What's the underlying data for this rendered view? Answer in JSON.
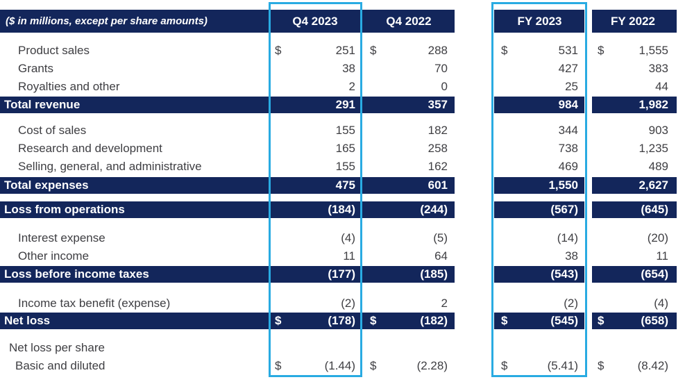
{
  "colors": {
    "navy": "#13265B",
    "highlight": "#29ABE2",
    "ink": "#3E3E42",
    "band_text": "#FFFFFF"
  },
  "table": {
    "units_note": "($ in millions, except per share amounts)",
    "columns": [
      "Q4 2023",
      "Q4 2022",
      "FY 2023",
      "FY 2022"
    ],
    "highlighted_columns": [
      "Q4 2023",
      "FY 2023"
    ],
    "rows": [
      {
        "label": "Product sales",
        "style": "item",
        "d": "$",
        "values": [
          "251",
          "288",
          "531",
          "1,555"
        ]
      },
      {
        "label": "Grants",
        "style": "item",
        "values": [
          "38",
          "70",
          "427",
          "383"
        ]
      },
      {
        "label": "Royalties and other",
        "style": "item",
        "values": [
          "2",
          "0",
          "25",
          "44"
        ]
      },
      {
        "label": "Total revenue",
        "style": "total-band",
        "values": [
          "291",
          "357",
          "984",
          "1,982"
        ]
      },
      {
        "label": "Cost of sales",
        "style": "item",
        "values": [
          "155",
          "182",
          "344",
          "903"
        ]
      },
      {
        "label": "Research and development",
        "style": "item",
        "values": [
          "165",
          "258",
          "738",
          "1,235"
        ]
      },
      {
        "label": "Selling, general, and administrative",
        "style": "item",
        "values": [
          "155",
          "162",
          "469",
          "489"
        ]
      },
      {
        "label": "Total expenses",
        "style": "total-band",
        "values": [
          "475",
          "601",
          "1,550",
          "2,627"
        ]
      },
      {
        "label": "Loss from operations",
        "style": "total-band",
        "values": [
          "(184)",
          "(244)",
          "(567)",
          "(645)"
        ]
      },
      {
        "label": "Interest expense",
        "style": "item",
        "values": [
          "(4)",
          "(5)",
          "(14)",
          "(20)"
        ]
      },
      {
        "label": "Other income",
        "style": "item",
        "values": [
          "11",
          "64",
          "38",
          "11"
        ]
      },
      {
        "label": "Loss before income taxes",
        "style": "total-band",
        "values": [
          "(177)",
          "(185)",
          "(543)",
          "(654)"
        ]
      },
      {
        "label": "Income tax benefit (expense)",
        "style": "item",
        "values": [
          "(2)",
          "2",
          "(2)",
          "(4)"
        ]
      },
      {
        "label": "Net loss",
        "style": "total-band",
        "d": "$",
        "values": [
          "(178)",
          "(182)",
          "(545)",
          "(658)"
        ]
      },
      {
        "label": "Net loss per share",
        "style": "section-label",
        "values": [
          "",
          "",
          "",
          ""
        ]
      },
      {
        "label": "Basic and diluted",
        "style": "item",
        "d": "$",
        "values": [
          "(1.44)",
          "(2.28)",
          "(5.41)",
          "(8.42)"
        ]
      }
    ]
  }
}
